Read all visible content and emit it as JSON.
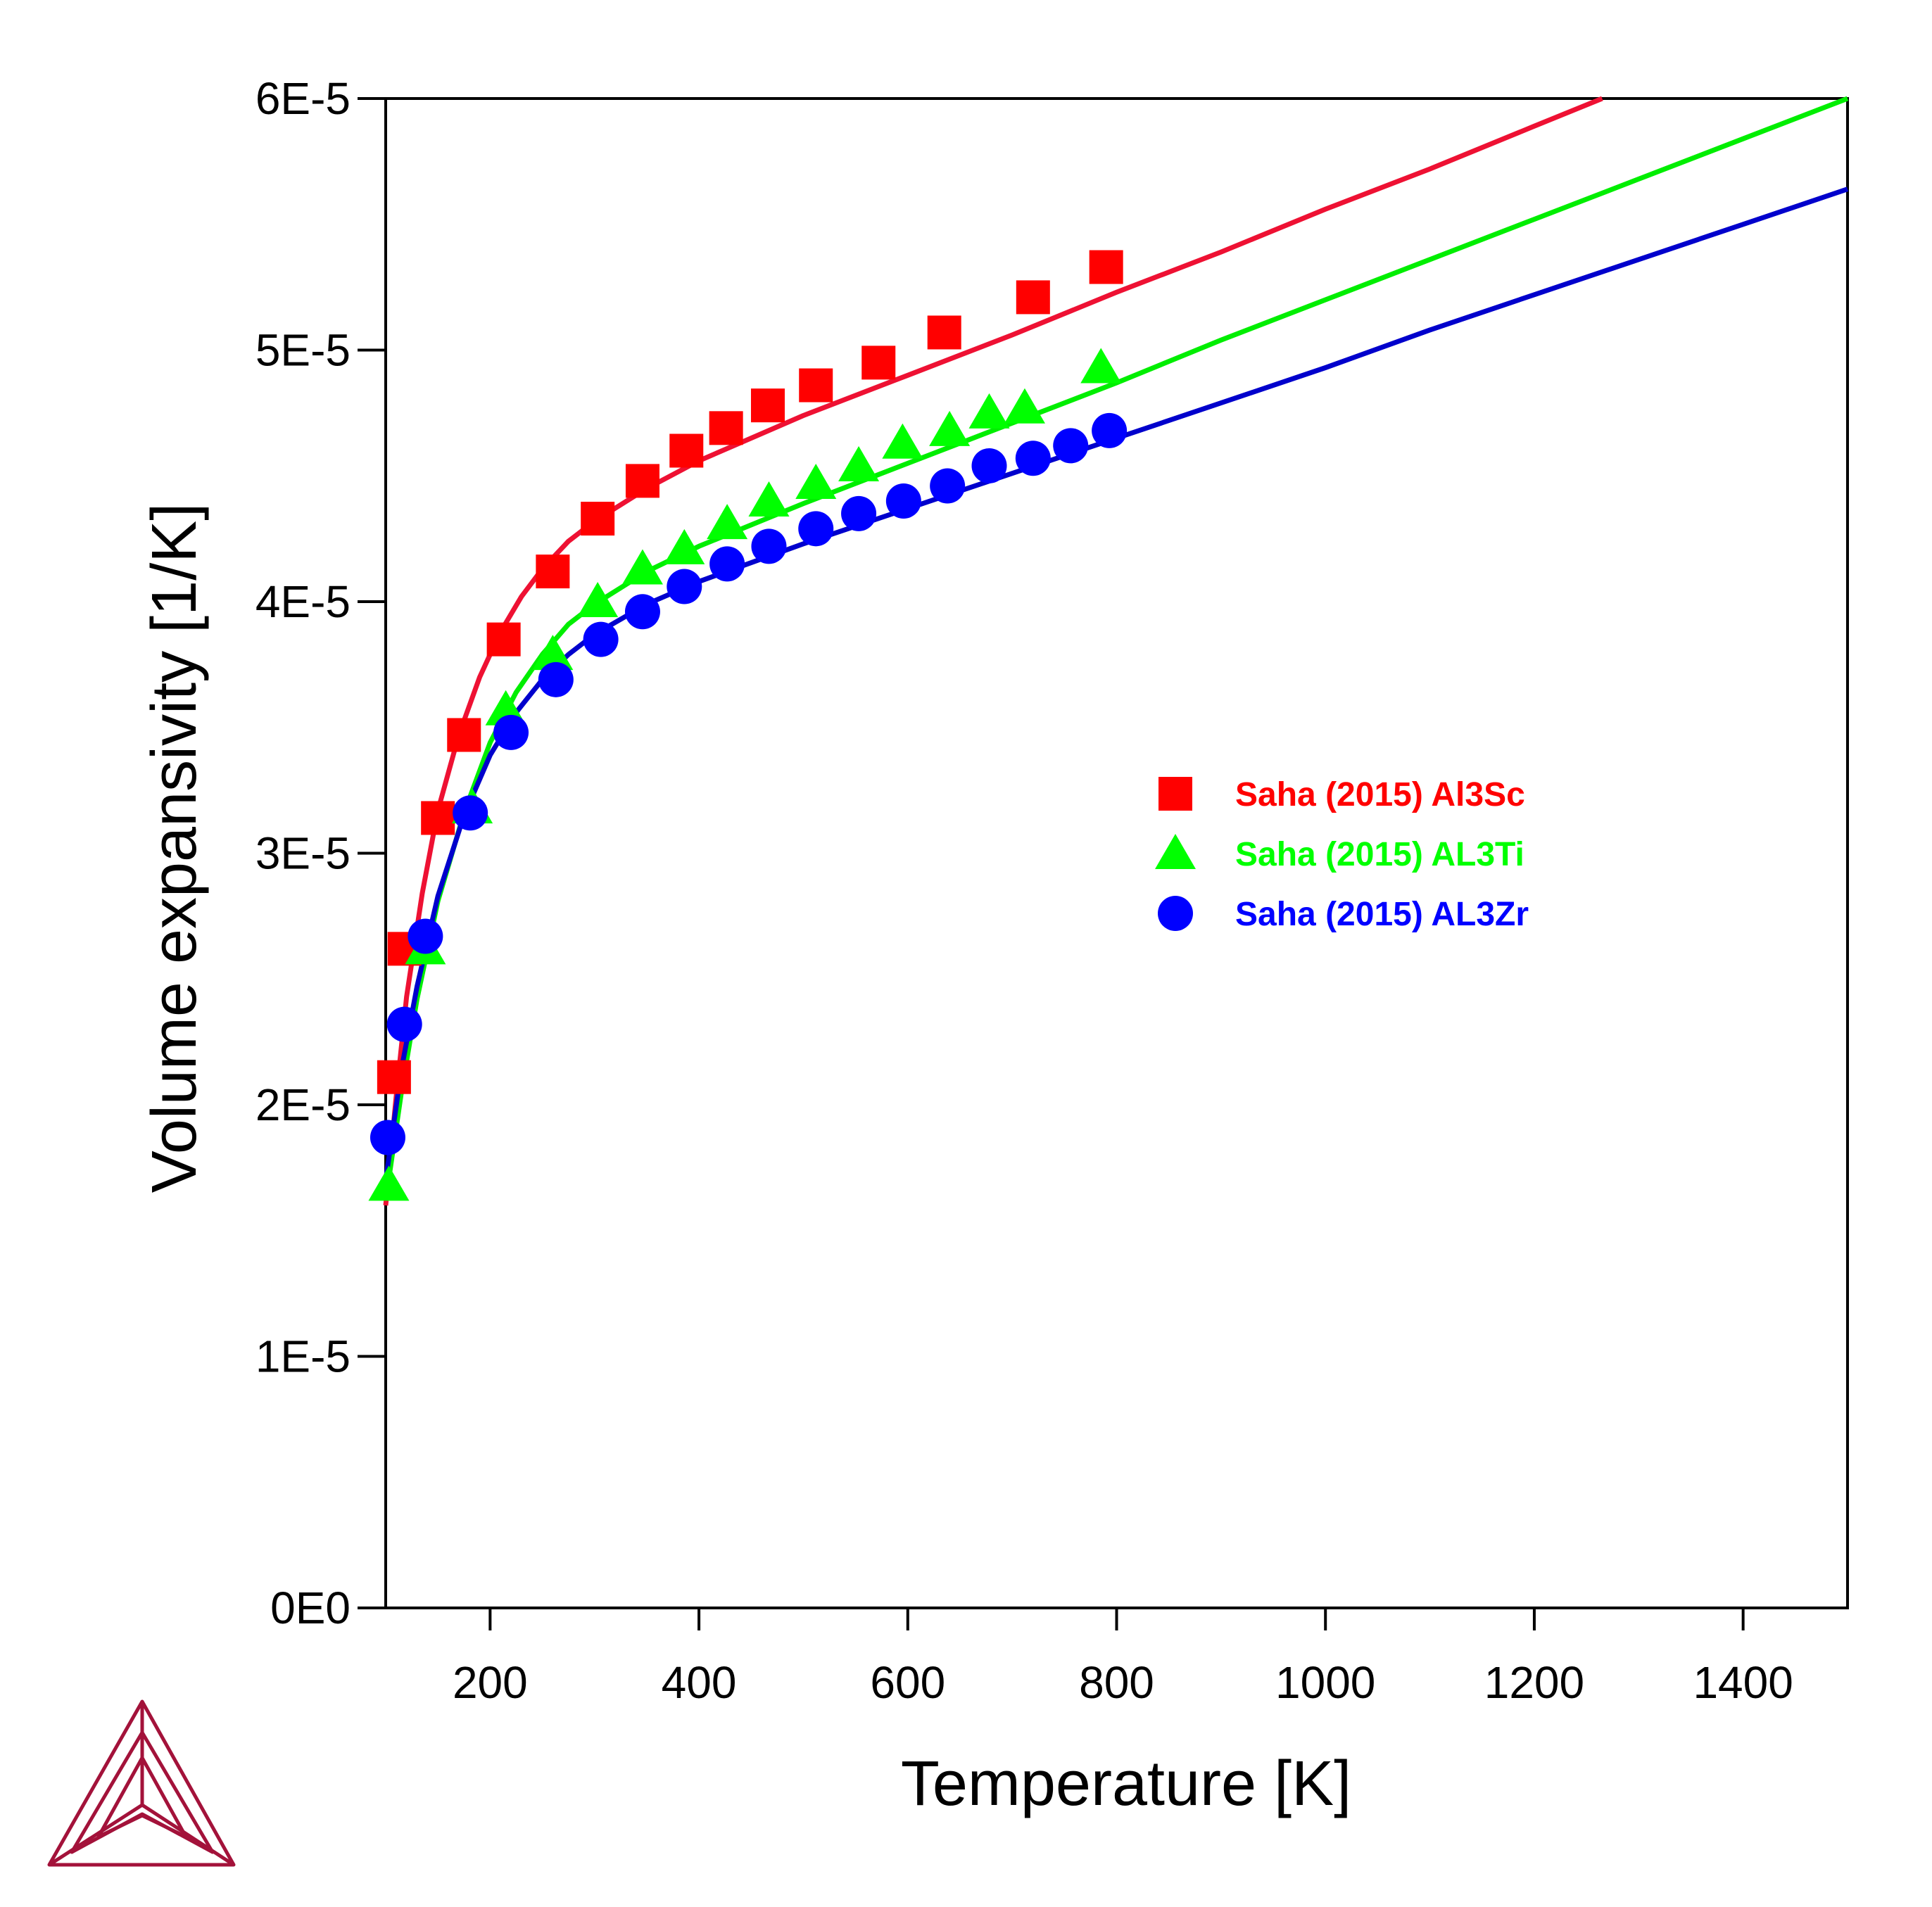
{
  "chart_data": {
    "type": "line",
    "title": "",
    "xlabel": "Temperature [K]",
    "ylabel": "Volume expansivity [1/K]",
    "xlim": [
      100,
      1500
    ],
    "ylim": [
      0,
      6e-05
    ],
    "x_ticks": [
      200,
      400,
      600,
      800,
      1000,
      1200,
      1400
    ],
    "x_tick_labels": [
      "200",
      "400",
      "600",
      "800",
      "1000",
      "1200",
      "1400"
    ],
    "y_ticks": [
      0,
      1e-05,
      2e-05,
      3e-05,
      4e-05,
      5e-05,
      6e-05
    ],
    "y_tick_labels": [
      "0E0",
      "1E-5",
      "2E-5",
      "3E-5",
      "4E-5",
      "5E-5",
      "6E-5"
    ],
    "grid": false,
    "legend_position": "middle-right",
    "series": [
      {
        "name": "Saha (2015) Al3Sc",
        "color": "#ff0000",
        "line_color": "#ee1133",
        "marker": "square",
        "points": [
          [
            108,
            21.1
          ],
          [
            118,
            26.2
          ],
          [
            150,
            31.4
          ],
          [
            175,
            34.7
          ],
          [
            213,
            38.5
          ],
          [
            260,
            41.2
          ],
          [
            303,
            43.3
          ],
          [
            346,
            44.8
          ],
          [
            388,
            46.0
          ],
          [
            426,
            46.9
          ],
          [
            466,
            47.8
          ],
          [
            512,
            48.6
          ],
          [
            572,
            49.5
          ],
          [
            635,
            50.7
          ],
          [
            720,
            52.1
          ],
          [
            790,
            53.3
          ]
        ],
        "curve": [
          [
            100,
            16.0
          ],
          [
            110,
            20.3
          ],
          [
            120,
            24.3
          ],
          [
            135,
            28.4
          ],
          [
            150,
            31.7
          ],
          [
            170,
            34.7
          ],
          [
            190,
            37.0
          ],
          [
            210,
            38.8
          ],
          [
            230,
            40.2
          ],
          [
            250,
            41.3
          ],
          [
            275,
            42.4
          ],
          [
            300,
            43.2
          ],
          [
            350,
            44.5
          ],
          [
            400,
            45.6
          ],
          [
            500,
            47.4
          ],
          [
            600,
            49.0
          ],
          [
            700,
            50.6
          ],
          [
            800,
            52.3
          ],
          [
            900,
            53.9
          ],
          [
            1000,
            55.6
          ],
          [
            1100,
            57.2
          ],
          [
            1200,
            58.9
          ],
          [
            1265,
            60.0
          ]
        ]
      },
      {
        "name": "Saha (2015) AL3Ti",
        "color": "#00ff00",
        "line_color": "#00ee00",
        "marker": "triangle",
        "points": [
          [
            103,
            16.8
          ],
          [
            138,
            26.2
          ],
          [
            183,
            31.8
          ],
          [
            215,
            35.7
          ],
          [
            260,
            37.9
          ],
          [
            303,
            40.0
          ],
          [
            346,
            41.3
          ],
          [
            386,
            42.1
          ],
          [
            427,
            43.1
          ],
          [
            467,
            44.0
          ],
          [
            512,
            44.7
          ],
          [
            553,
            45.4
          ],
          [
            595,
            46.3
          ],
          [
            640,
            46.8
          ],
          [
            678,
            47.5
          ],
          [
            712,
            47.7
          ],
          [
            785,
            49.3
          ]
        ],
        "curve": [
          [
            100,
            16.2
          ],
          [
            115,
            20.5
          ],
          [
            130,
            24.2
          ],
          [
            150,
            28.1
          ],
          [
            175,
            31.6
          ],
          [
            200,
            34.4
          ],
          [
            225,
            36.4
          ],
          [
            250,
            37.9
          ],
          [
            275,
            39.1
          ],
          [
            300,
            39.9
          ],
          [
            350,
            41.2
          ],
          [
            400,
            42.2
          ],
          [
            500,
            43.9
          ],
          [
            600,
            45.5
          ],
          [
            700,
            47.1
          ],
          [
            800,
            48.7
          ],
          [
            900,
            50.4
          ],
          [
            1000,
            52.0
          ],
          [
            1100,
            53.6
          ],
          [
            1200,
            55.2
          ],
          [
            1300,
            56.8
          ],
          [
            1400,
            58.4
          ],
          [
            1500,
            60.0
          ]
        ]
      },
      {
        "name": "Saha (2015) AL3Zr",
        "color": "#0000ff",
        "line_color": "#0000cc",
        "marker": "circle",
        "points": [
          [
            102,
            18.7
          ],
          [
            118,
            23.2
          ],
          [
            138,
            26.7
          ],
          [
            181,
            31.6
          ],
          [
            220,
            34.8
          ],
          [
            263,
            36.9
          ],
          [
            306,
            38.5
          ],
          [
            346,
            39.6
          ],
          [
            386,
            40.6
          ],
          [
            427,
            41.5
          ],
          [
            467,
            42.2
          ],
          [
            512,
            42.9
          ],
          [
            553,
            43.5
          ],
          [
            596,
            44.0
          ],
          [
            638,
            44.6
          ],
          [
            678,
            45.4
          ],
          [
            720,
            45.7
          ],
          [
            756,
            46.2
          ],
          [
            793,
            46.8
          ]
        ],
        "curve": [
          [
            100,
            17.0
          ],
          [
            115,
            21.4
          ],
          [
            130,
            24.7
          ],
          [
            150,
            28.3
          ],
          [
            175,
            31.5
          ],
          [
            200,
            33.9
          ],
          [
            225,
            35.6
          ],
          [
            250,
            36.9
          ],
          [
            275,
            37.9
          ],
          [
            300,
            38.7
          ],
          [
            350,
            39.9
          ],
          [
            400,
            40.8
          ],
          [
            500,
            42.3
          ],
          [
            600,
            43.7
          ],
          [
            700,
            45.1
          ],
          [
            800,
            46.5
          ],
          [
            900,
            47.9
          ],
          [
            1000,
            49.3
          ],
          [
            1100,
            50.8
          ],
          [
            1200,
            52.2
          ],
          [
            1300,
            53.6
          ],
          [
            1400,
            55.0
          ],
          [
            1500,
            56.4
          ]
        ]
      }
    ],
    "y_scale_note_units": "values ×1E-6 1/K"
  },
  "logo": {
    "name": "triangle-logo",
    "color": "#a3123a"
  }
}
